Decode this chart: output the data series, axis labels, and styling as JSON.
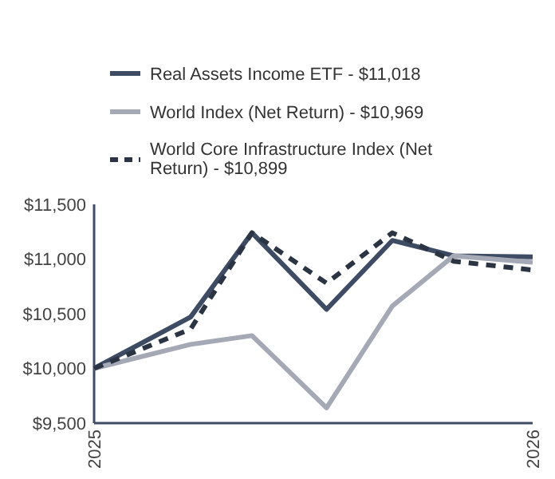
{
  "chart_data": {
    "type": "line",
    "x": [
      2025,
      2025.22,
      2025.36,
      2025.53,
      2025.68,
      2025.82,
      2026
    ],
    "series": [
      {
        "name": "Real Assets Income ETF - $11,018",
        "color": "#3d4b63",
        "values": [
          10000,
          10470,
          11240,
          10540,
          11170,
          11030,
          11020
        ],
        "line_style": "solid"
      },
      {
        "name": "World Index (Net Return) - $10,969",
        "color": "#a4a9b5",
        "values": [
          10000,
          10220,
          10300,
          9640,
          10570,
          11030,
          10970
        ],
        "line_style": "solid"
      },
      {
        "name": "World Core Infrastructure Index (Net Return) - $10,899",
        "color": "#2b3443",
        "values": [
          10000,
          10360,
          11240,
          10780,
          11240,
          10980,
          10900
        ],
        "line_style": "dashed"
      }
    ],
    "xlim": [
      2025,
      2026
    ],
    "xticks": [
      2025,
      2026
    ],
    "ylim": [
      9500,
      11500
    ],
    "yticks": [
      {
        "value": 9500,
        "label": "$9,500"
      },
      {
        "value": 10000,
        "label": "$10,000"
      },
      {
        "value": 10500,
        "label": "$10,500"
      },
      {
        "value": 11000,
        "label": "$11,000"
      },
      {
        "value": 11500,
        "label": "$11,500"
      }
    ],
    "grid": false,
    "legend": "top",
    "marker": "none"
  }
}
